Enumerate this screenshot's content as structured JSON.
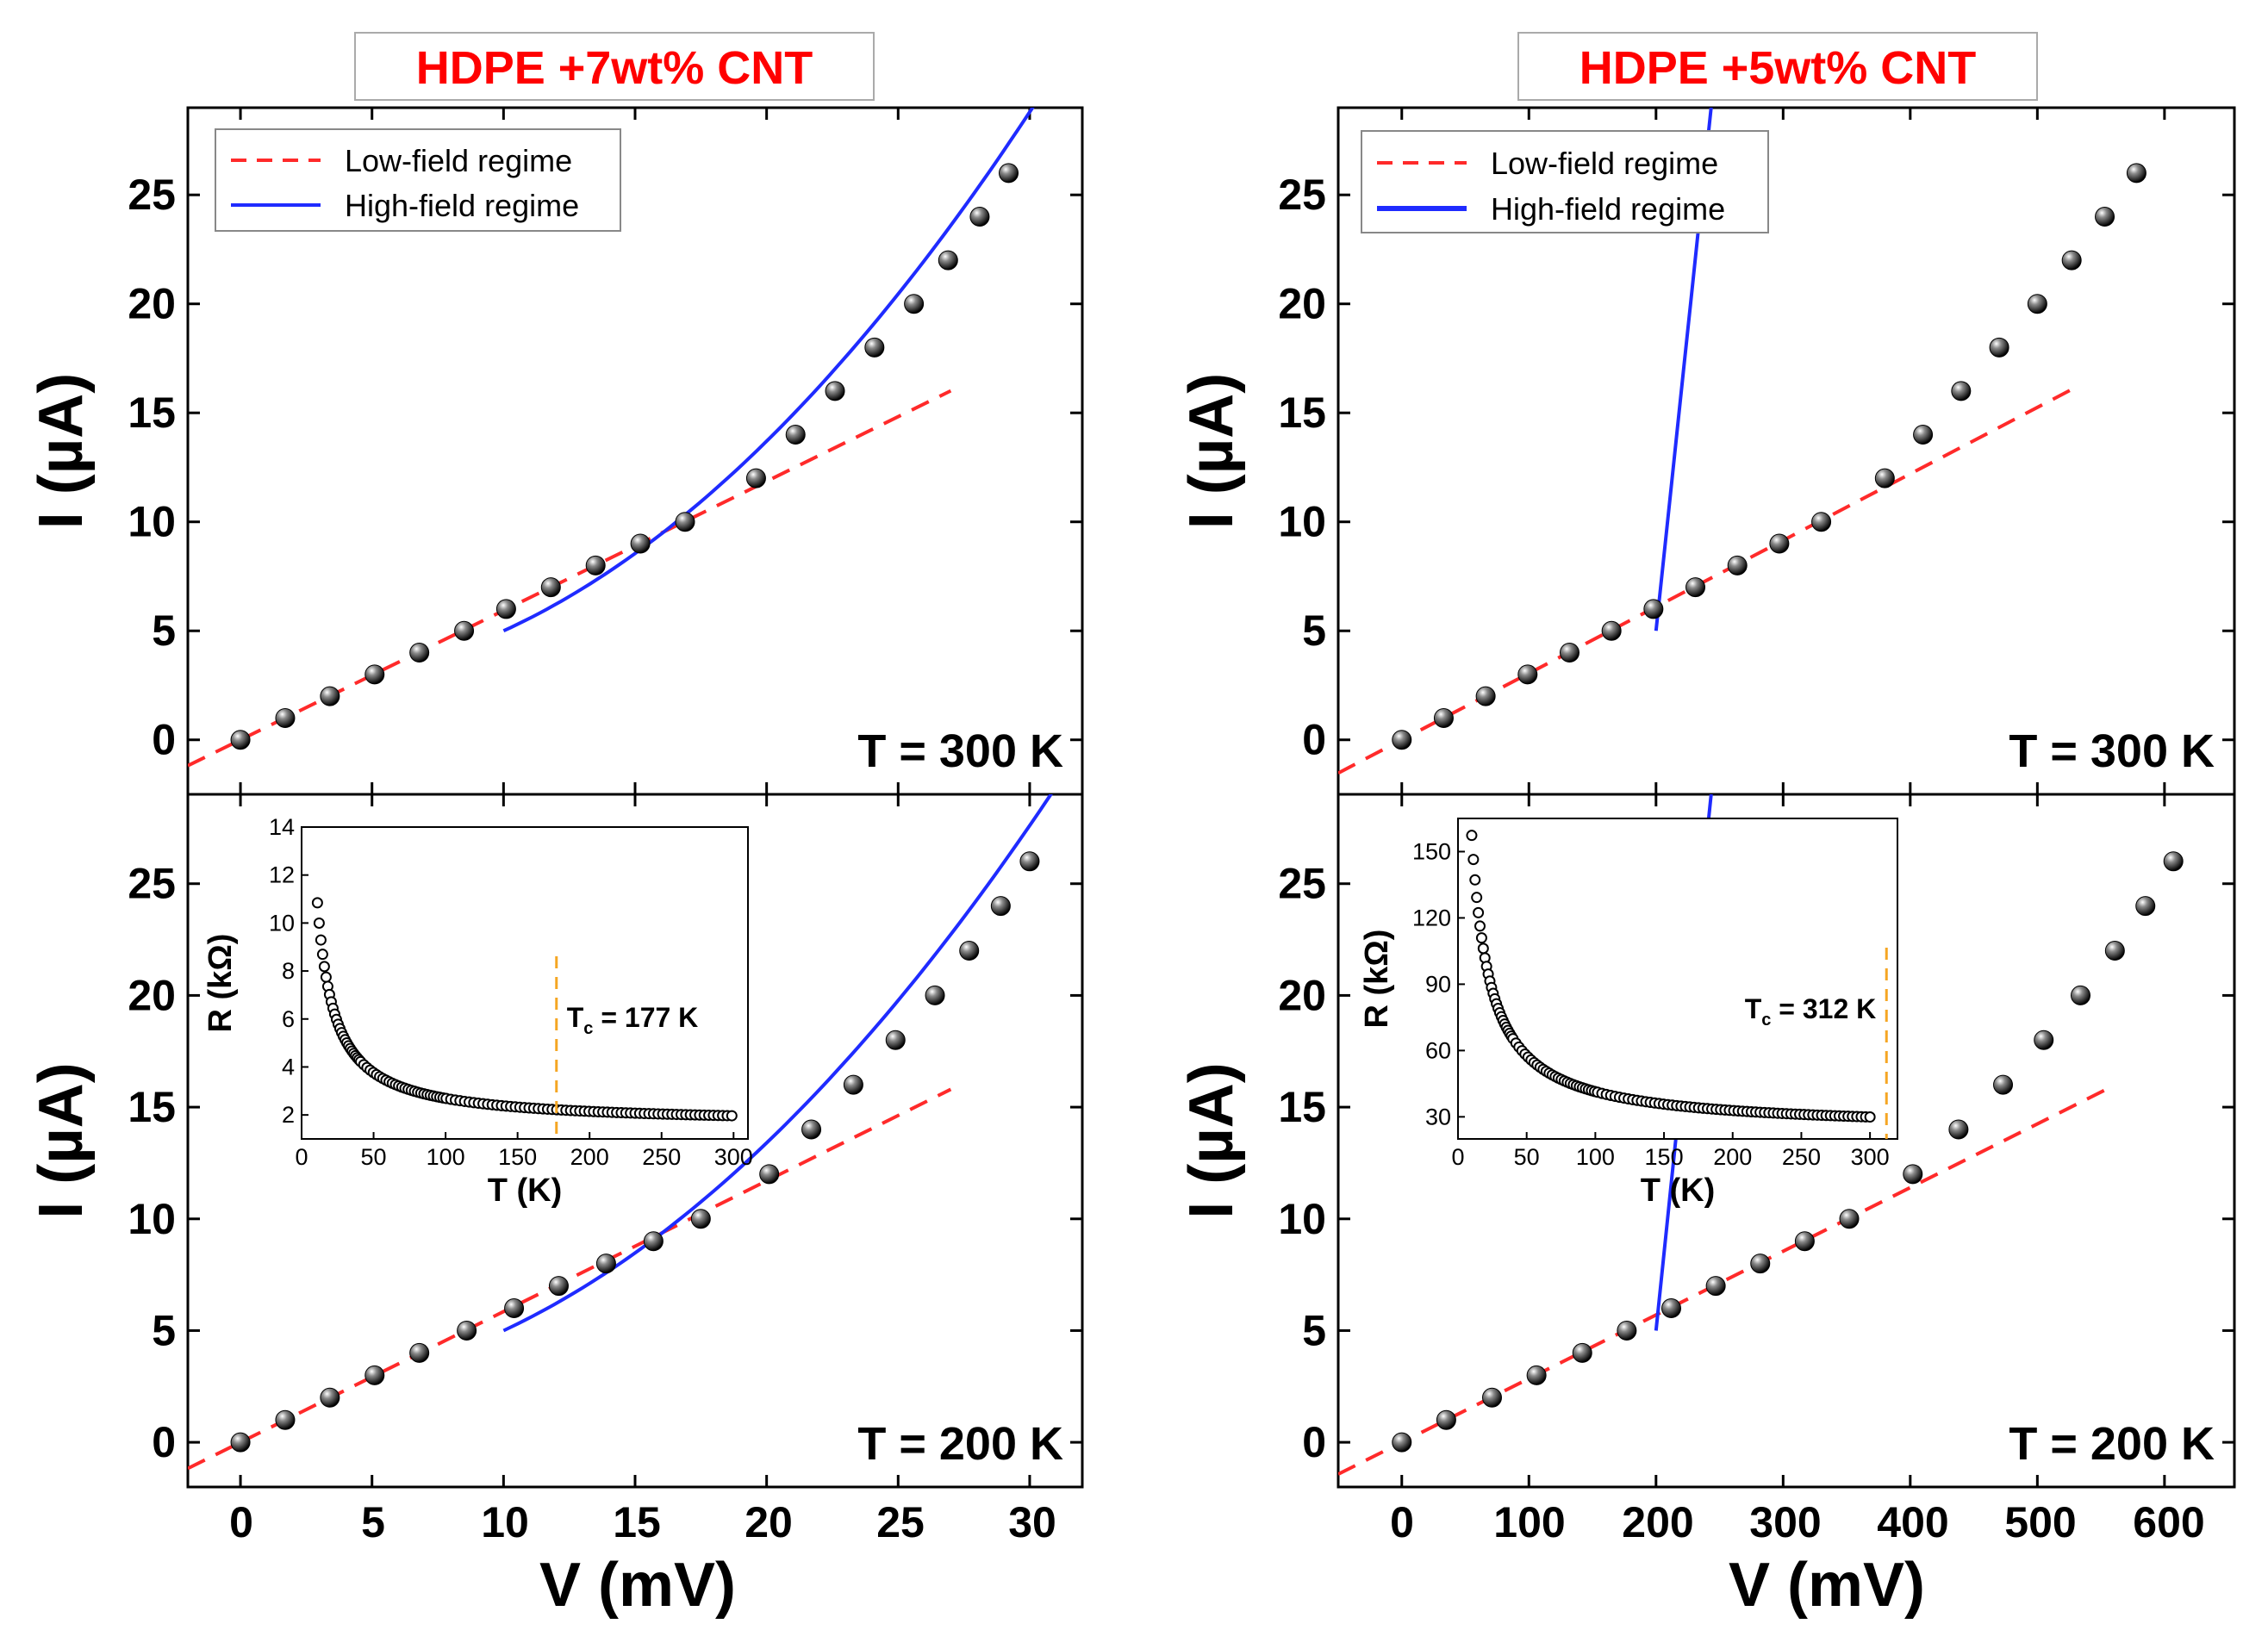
{
  "chart_data": [
    {
      "type": "scatter",
      "title": "HDPE +7wt% CNT",
      "xlabel": "V (mV)",
      "xlim": [
        -2,
        32
      ],
      "xticks": [
        0,
        5,
        10,
        15,
        20,
        25,
        30
      ],
      "legend": {
        "position": "top-left",
        "entries": [
          "Low-field regime",
          "High-field regime"
        ]
      },
      "panels": [
        {
          "annotation": "T = 300 K",
          "ylabel": "I (µA)",
          "ylim": [
            -2.5,
            29
          ],
          "yticks": [
            0,
            5,
            10,
            15,
            20,
            25
          ],
          "x": [
            0,
            1.7,
            3.4,
            5.1,
            6.8,
            8.5,
            10.1,
            11.8,
            13.5,
            15.2,
            16.9,
            19.6,
            21.1,
            22.6,
            24.1,
            25.6,
            26.9,
            28.1,
            29.2
          ],
          "y": [
            0,
            1,
            2,
            3,
            4,
            5,
            6,
            7,
            8,
            9,
            10,
            12,
            14,
            16,
            18,
            20,
            22,
            24,
            26
          ],
          "low_field_fit": {
            "x": [
              -2,
              27
            ],
            "slope": 0.593,
            "intercept": 0
          },
          "high_field_fit": {
            "x": [
              10,
              32
            ],
            "a": 0.032,
            "b": 0.22,
            "c": 0.55,
            "x0": 10,
            "y0": 5
          }
        },
        {
          "annotation": "T = 200 K",
          "ylabel": "I (µA)",
          "ylim": [
            -2,
            29
          ],
          "yticks": [
            0,
            5,
            10,
            15,
            20,
            25
          ],
          "x": [
            0,
            1.7,
            3.4,
            5.1,
            6.8,
            8.6,
            10.4,
            12.1,
            13.9,
            15.7,
            17.5,
            20.1,
            21.7,
            23.3,
            24.9,
            26.4,
            27.7,
            28.9,
            30
          ],
          "y": [
            0,
            1,
            2,
            3,
            4,
            5,
            6,
            7,
            8,
            9,
            10,
            12,
            14,
            16,
            18,
            20,
            22,
            24,
            26
          ],
          "low_field_fit": {
            "x": [
              -2,
              27
            ],
            "slope": 0.585,
            "intercept": 0
          },
          "high_field_fit": {
            "x": [
              10,
              32
            ],
            "a": 0.029,
            "b": 0.2,
            "c": 0.55,
            "x0": 10,
            "y0": 5
          },
          "inset": {
            "xlabel": "T (K)",
            "ylabel": "R (kΩ)",
            "xlim": [
              0,
              310
            ],
            "ylim": [
              1,
              14
            ],
            "xticks": [
              0,
              50,
              100,
              150,
              200,
              250,
              300
            ],
            "yticks": [
              2,
              4,
              6,
              8,
              10,
              12,
              14
            ],
            "model": {
              "r_inf": 1.6,
              "k": 110,
              "t0": -0.9,
              "t_min": 11,
              "t_max": 300
            },
            "marker": {
              "value": 177,
              "label": "T",
              "sub": "c",
              "label_rest": " = 177 K",
              "color": "#f5a623"
            }
          }
        }
      ]
    },
    {
      "type": "scatter",
      "title": "HDPE +5wt% CNT",
      "xlabel": "V (mV)",
      "xlim": [
        -50,
        655
      ],
      "xticks": [
        0,
        100,
        200,
        300,
        400,
        500,
        600
      ],
      "legend": {
        "position": "top-left",
        "entries": [
          "Low-field regime",
          "High-field regime"
        ]
      },
      "panels": [
        {
          "annotation": "T = 300 K",
          "ylabel": "I (µA)",
          "ylim": [
            -2.5,
            29
          ],
          "yticks": [
            0,
            5,
            10,
            15,
            20,
            25
          ],
          "x": [
            0,
            33,
            66,
            99,
            132,
            165,
            198,
            231,
            264,
            297,
            330,
            380,
            410,
            440,
            470,
            500,
            527,
            553,
            578
          ],
          "y": [
            0,
            1,
            2,
            3,
            4,
            5,
            6,
            7,
            8,
            9,
            10,
            12,
            14,
            16,
            18,
            20,
            22,
            24,
            26
          ],
          "low_field_fit": {
            "x": [
              -50,
              530
            ],
            "slope": 0.0305,
            "intercept": 0
          },
          "high_field_fit": {
            "x": [
              200,
              640
            ],
            "a": 8.5e-05,
            "b": 0.0105,
            "c": 0.55,
            "x0": 200,
            "y0": 5
          }
        },
        {
          "annotation": "T = 200 K",
          "ylabel": "I (µA)",
          "ylim": [
            -2,
            29
          ],
          "yticks": [
            0,
            5,
            10,
            15,
            20,
            25
          ],
          "x": [
            0,
            35,
            71,
            106,
            142,
            177,
            212,
            247,
            282,
            317,
            352,
            402,
            438,
            473,
            505,
            534,
            561,
            585,
            607
          ],
          "y": [
            0,
            1,
            2,
            3,
            4,
            5,
            6,
            7,
            8,
            9,
            10,
            12,
            14,
            16,
            18,
            20,
            22,
            24,
            26
          ],
          "low_field_fit": {
            "x": [
              -50,
              560
            ],
            "slope": 0.0285,
            "intercept": 0
          },
          "high_field_fit": {
            "x": [
              200,
              655
            ],
            "a": 7.2e-05,
            "b": 0.0095,
            "c": 0.55,
            "x0": 200,
            "y0": 5
          },
          "inset": {
            "xlabel": "T (K)",
            "ylabel": "R (kΩ)",
            "xlim": [
              0,
              320
            ],
            "ylim": [
              20,
              165
            ],
            "xticks": [
              0,
              50,
              100,
              150,
              200,
              250,
              300
            ],
            "yticks": [
              30,
              60,
              90,
              120,
              150
            ],
            "model": {
              "r_inf": 24,
              "k": 1800,
              "t0": -3.5,
              "t_min": 10,
              "t_max": 300
            },
            "marker": {
              "value": 312,
              "label": "T",
              "sub": "c",
              "label_rest": " = 312 K",
              "color": "#f5a623"
            }
          }
        }
      ]
    }
  ],
  "colors": {
    "low_field": "#ff2a2a",
    "high_field": "#1f2bff",
    "title": "#ff0000",
    "marker": "#f5a623"
  }
}
